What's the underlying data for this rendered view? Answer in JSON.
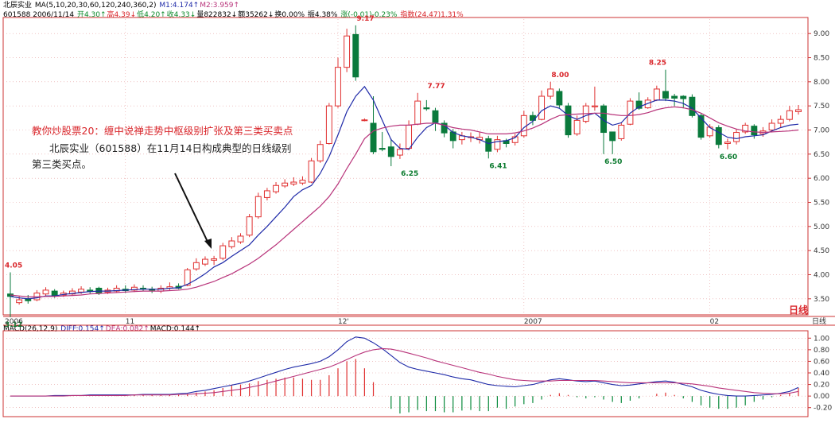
{
  "header": {
    "line1": [
      {
        "text": "北辰实业",
        "color": "#000000"
      },
      {
        "text": " MA(5,10,20,30,60,120,240,360,2)",
        "color": "#000000"
      },
      {
        "text": " M1:4.174↑",
        "color": "#1f2aa8"
      },
      {
        "text": "M2:3.959↑",
        "color": "#b8337a"
      }
    ],
    "line2": [
      {
        "text": "601588 2006/11/14 ",
        "color": "#000000"
      },
      {
        "text": "开4.30↑",
        "color": "#0b8a2a"
      },
      {
        "text": "高4.39↓",
        "color": "#d9262b"
      },
      {
        "text": "低4.20↑",
        "color": "#0b8a2a"
      },
      {
        "text": "收4.33↓",
        "color": "#0b8a2a"
      },
      {
        "text": "量822832↓",
        "color": "#000000"
      },
      {
        "text": "额35262↓",
        "color": "#000000"
      },
      {
        "text": "换0.00% ",
        "color": "#000000"
      },
      {
        "text": "振4.38% ",
        "color": "#000000"
      },
      {
        "text": "涨(-0.01)-0.23% ",
        "color": "#0b8a2a"
      },
      {
        "text": "指数(24.47)1.31%",
        "color": "#d9262b"
      }
    ],
    "macd": [
      {
        "text": "MACD(26,12,9) ",
        "color": "#000000"
      },
      {
        "text": "DIFF:0.154↑",
        "color": "#1f2aa8"
      },
      {
        "text": "DEA:0.082↑",
        "color": "#b8337a"
      },
      {
        "text": "MACD:0.144↑",
        "color": "#000000"
      }
    ]
  },
  "annotation": {
    "title": "教你炒股票20：缠中说禅走势中枢级别扩张及第三类买卖点",
    "line1": "北辰实业（601588）在11月14日构成典型的日线级别",
    "line2": "第三类买点。"
  },
  "period_label": "日线",
  "macd_period_label": "日线",
  "chart_data": {
    "type": "candlestick",
    "price_axis": {
      "min": 3.12,
      "max": 9.17,
      "ticks": [
        "9.00",
        "8.50",
        "8.00",
        "7.50",
        "7.00",
        "6.50",
        "6.00",
        "5.50",
        "5.00",
        "4.50",
        "4.00",
        "3.50"
      ]
    },
    "time_labels": [
      {
        "label": "2006",
        "index": 0
      },
      {
        "label": "11",
        "index": 13
      },
      {
        "label": "12'",
        "index": 37
      },
      {
        "label": "2007",
        "index": 58
      },
      {
        "label": "02",
        "index": 79
      }
    ],
    "peak_labels": [
      {
        "index": 0,
        "price": 4.05,
        "text": "4.05",
        "kind": "high"
      },
      {
        "index": 0,
        "price": 3.12,
        "text": "3.12",
        "kind": "low"
      },
      {
        "index": 40,
        "price": 9.17,
        "text": "9.17",
        "kind": "high"
      },
      {
        "index": 45,
        "price": 6.25,
        "text": "6.25",
        "kind": "low"
      },
      {
        "index": 48,
        "price": 7.77,
        "text": "7.77",
        "kind": "high"
      },
      {
        "index": 55,
        "price": 6.41,
        "text": "6.41",
        "kind": "low"
      },
      {
        "index": 62,
        "price": 8.0,
        "text": "8.00",
        "kind": "high"
      },
      {
        "index": 68,
        "price": 6.5,
        "text": "6.50",
        "kind": "low"
      },
      {
        "index": 73,
        "price": 8.25,
        "text": "8.25",
        "kind": "high"
      },
      {
        "index": 81,
        "price": 6.6,
        "text": "6.60",
        "kind": "low"
      }
    ],
    "candles": [
      [
        3.6,
        3.55,
        4.05,
        3.12
      ],
      [
        3.42,
        3.48,
        3.56,
        3.38
      ],
      [
        3.5,
        3.46,
        3.58,
        3.4
      ],
      [
        3.48,
        3.62,
        3.68,
        3.45
      ],
      [
        3.6,
        3.68,
        3.74,
        3.55
      ],
      [
        3.66,
        3.57,
        3.7,
        3.52
      ],
      [
        3.58,
        3.62,
        3.67,
        3.54
      ],
      [
        3.6,
        3.66,
        3.72,
        3.56
      ],
      [
        3.64,
        3.7,
        3.76,
        3.6
      ],
      [
        3.68,
        3.65,
        3.74,
        3.6
      ],
      [
        3.72,
        3.62,
        3.75,
        3.58
      ],
      [
        3.64,
        3.68,
        3.73,
        3.6
      ],
      [
        3.66,
        3.72,
        3.78,
        3.62
      ],
      [
        3.7,
        3.67,
        3.78,
        3.62
      ],
      [
        3.68,
        3.74,
        3.8,
        3.64
      ],
      [
        3.72,
        3.7,
        3.78,
        3.66
      ],
      [
        3.7,
        3.68,
        3.75,
        3.62
      ],
      [
        3.66,
        3.72,
        3.78,
        3.62
      ],
      [
        3.72,
        3.75,
        3.84,
        3.68
      ],
      [
        3.76,
        3.72,
        3.82,
        3.7
      ],
      [
        3.78,
        4.1,
        4.14,
        3.76
      ],
      [
        4.12,
        4.25,
        4.34,
        4.08
      ],
      [
        4.22,
        4.32,
        4.38,
        4.18
      ],
      [
        4.3,
        4.33,
        4.39,
        4.2
      ],
      [
        4.34,
        4.6,
        4.66,
        4.3
      ],
      [
        4.58,
        4.7,
        4.78,
        4.54
      ],
      [
        4.68,
        4.8,
        4.86,
        4.64
      ],
      [
        4.82,
        5.2,
        5.26,
        4.78
      ],
      [
        5.2,
        5.62,
        5.7,
        5.16
      ],
      [
        5.6,
        5.74,
        5.8,
        5.54
      ],
      [
        5.72,
        5.85,
        5.92,
        5.68
      ],
      [
        5.84,
        5.9,
        5.98,
        5.8
      ],
      [
        5.88,
        5.92,
        6.02,
        5.84
      ],
      [
        5.9,
        5.96,
        6.04,
        5.86
      ],
      [
        5.92,
        6.36,
        6.42,
        5.9
      ],
      [
        6.36,
        6.7,
        6.78,
        6.32
      ],
      [
        6.72,
        7.5,
        7.56,
        6.7
      ],
      [
        7.5,
        8.3,
        8.5,
        7.46
      ],
      [
        8.3,
        8.95,
        9.1,
        8.2
      ],
      [
        8.98,
        8.1,
        9.17,
        8.02
      ],
      [
        7.2,
        7.21,
        7.24,
        7.18
      ],
      [
        7.14,
        6.55,
        7.7,
        6.5
      ],
      [
        6.62,
        6.6,
        6.96,
        6.56
      ],
      [
        6.65,
        6.45,
        6.82,
        6.25
      ],
      [
        6.48,
        6.6,
        6.72,
        6.4
      ],
      [
        6.62,
        7.1,
        7.2,
        6.58
      ],
      [
        7.12,
        7.6,
        7.77,
        7.1
      ],
      [
        7.46,
        7.44,
        7.62,
        7.4
      ],
      [
        7.4,
        7.16,
        7.46,
        6.98
      ],
      [
        7.14,
        6.94,
        7.2,
        6.85
      ],
      [
        6.96,
        6.78,
        7.02,
        6.62
      ],
      [
        6.8,
        6.88,
        6.96,
        6.7
      ],
      [
        6.85,
        6.86,
        6.95,
        6.75
      ],
      [
        6.8,
        6.85,
        6.95,
        6.72
      ],
      [
        6.82,
        6.56,
        6.88,
        6.41
      ],
      [
        6.6,
        6.8,
        6.88,
        6.54
      ],
      [
        6.78,
        6.72,
        6.82,
        6.64
      ],
      [
        6.74,
        6.86,
        6.92,
        6.68
      ],
      [
        6.88,
        7.3,
        7.4,
        6.84
      ],
      [
        7.3,
        7.2,
        7.38,
        7.1
      ],
      [
        7.22,
        7.7,
        7.82,
        7.2
      ],
      [
        7.7,
        7.85,
        8.0,
        7.64
      ],
      [
        7.8,
        7.52,
        7.86,
        7.46
      ],
      [
        7.5,
        6.9,
        7.56,
        6.84
      ],
      [
        6.92,
        7.2,
        7.3,
        6.88
      ],
      [
        7.18,
        7.5,
        7.56,
        7.14
      ],
      [
        7.48,
        7.5,
        7.9,
        7.4
      ],
      [
        7.5,
        6.95,
        7.54,
        6.5
      ],
      [
        6.96,
        6.78,
        6.94,
        6.5
      ],
      [
        6.82,
        7.1,
        7.16,
        6.78
      ],
      [
        7.12,
        7.6,
        7.66,
        7.1
      ],
      [
        7.6,
        7.45,
        7.78,
        7.42
      ],
      [
        7.46,
        7.62,
        7.68,
        7.44
      ],
      [
        7.62,
        7.85,
        7.92,
        7.6
      ],
      [
        7.8,
        7.66,
        8.25,
        7.6
      ],
      [
        7.7,
        7.66,
        7.75,
        7.5
      ],
      [
        7.7,
        7.65,
        7.72,
        7.45
      ],
      [
        7.68,
        7.3,
        7.74,
        7.26
      ],
      [
        7.3,
        6.85,
        7.34,
        6.8
      ],
      [
        6.88,
        7.06,
        7.12,
        6.84
      ],
      [
        7.05,
        6.7,
        7.1,
        6.62
      ],
      [
        6.72,
        6.75,
        6.82,
        6.6
      ],
      [
        6.76,
        6.95,
        7.02,
        6.7
      ],
      [
        6.96,
        7.1,
        7.15,
        6.92
      ],
      [
        7.08,
        6.9,
        7.12,
        6.82
      ],
      [
        6.92,
        6.98,
        7.06,
        6.86
      ],
      [
        7.0,
        7.14,
        7.22,
        6.95
      ],
      [
        7.14,
        7.22,
        7.3,
        7.05
      ],
      [
        7.22,
        7.4,
        7.5,
        7.18
      ],
      [
        7.38,
        7.42,
        7.52,
        7.32
      ]
    ],
    "ma_series": [
      {
        "name": "M1",
        "color": "#1f2aa8",
        "values": [
          3.55,
          3.52,
          3.5,
          3.52,
          3.56,
          3.56,
          3.59,
          3.61,
          3.63,
          3.65,
          3.66,
          3.66,
          3.67,
          3.68,
          3.69,
          3.7,
          3.7,
          3.7,
          3.72,
          3.73,
          3.8,
          3.9,
          4.02,
          4.16,
          4.25,
          4.38,
          4.5,
          4.62,
          4.82,
          5.0,
          5.2,
          5.4,
          5.62,
          5.76,
          5.85,
          6.1,
          6.45,
          6.9,
          7.38,
          7.7,
          7.9,
          7.62,
          7.2,
          6.8,
          6.62,
          6.6,
          6.85,
          7.05,
          7.15,
          7.1,
          6.95,
          6.88,
          6.85,
          6.8,
          6.72,
          6.76,
          6.78,
          6.84,
          7.05,
          7.18,
          7.4,
          7.5,
          7.45,
          7.3,
          7.22,
          7.3,
          7.35,
          7.2,
          7.1,
          7.15,
          7.35,
          7.48,
          7.55,
          7.62,
          7.62,
          7.6,
          7.55,
          7.45,
          7.25,
          7.05,
          6.95,
          6.85,
          6.82,
          6.86,
          6.88,
          6.9,
          6.98,
          7.05,
          7.1,
          7.12
        ]
      },
      {
        "name": "M2",
        "color": "#b8337a",
        "values": [
          3.58,
          3.56,
          3.54,
          3.54,
          3.55,
          3.55,
          3.56,
          3.57,
          3.58,
          3.6,
          3.61,
          3.62,
          3.63,
          3.64,
          3.65,
          3.66,
          3.66,
          3.66,
          3.67,
          3.68,
          3.7,
          3.74,
          3.8,
          3.86,
          3.94,
          4.02,
          4.12,
          4.22,
          4.34,
          4.48,
          4.62,
          4.78,
          4.94,
          5.1,
          5.26,
          5.42,
          5.62,
          5.88,
          6.2,
          6.5,
          6.82,
          6.98,
          7.04,
          7.08,
          7.1,
          7.1,
          7.12,
          7.14,
          7.14,
          7.1,
          7.05,
          7.02,
          7.0,
          6.96,
          6.92,
          6.92,
          6.92,
          6.94,
          6.98,
          7.04,
          7.12,
          7.22,
          7.3,
          7.32,
          7.33,
          7.34,
          7.35,
          7.35,
          7.32,
          7.3,
          7.3,
          7.32,
          7.36,
          7.42,
          7.46,
          7.48,
          7.46,
          7.42,
          7.35,
          7.25,
          7.15,
          7.08,
          7.02,
          6.98,
          6.96,
          6.95,
          6.96,
          6.97,
          6.98,
          7.0
        ]
      }
    ],
    "macd": {
      "axis": {
        "min": -0.3,
        "max": 1.1,
        "ticks": [
          "1.00",
          "0.80",
          "0.60",
          "0.40",
          "0.20",
          "0.00",
          "-0.20"
        ]
      },
      "diff": [
        0,
        0,
        0,
        0,
        0,
        0.01,
        0.01,
        0.01,
        0.01,
        0.02,
        0.02,
        0.02,
        0.02,
        0.02,
        0.02,
        0.03,
        0.03,
        0.03,
        0.03,
        0.04,
        0.05,
        0.08,
        0.1,
        0.13,
        0.16,
        0.19,
        0.22,
        0.26,
        0.31,
        0.36,
        0.41,
        0.46,
        0.5,
        0.53,
        0.56,
        0.6,
        0.68,
        0.8,
        0.94,
        1.02,
        1.0,
        0.92,
        0.82,
        0.7,
        0.58,
        0.5,
        0.46,
        0.43,
        0.4,
        0.37,
        0.33,
        0.3,
        0.28,
        0.24,
        0.2,
        0.18,
        0.17,
        0.16,
        0.18,
        0.2,
        0.24,
        0.28,
        0.3,
        0.28,
        0.26,
        0.25,
        0.26,
        0.23,
        0.2,
        0.18,
        0.19,
        0.21,
        0.23,
        0.25,
        0.26,
        0.24,
        0.2,
        0.16,
        0.1,
        0.06,
        0.03,
        0.01,
        0.0,
        0.0,
        0.01,
        0.02,
        0.03,
        0.05,
        0.08,
        0.15
      ],
      "dea": [
        0,
        0,
        0,
        0,
        0,
        0,
        0,
        0.01,
        0.01,
        0.01,
        0.01,
        0.01,
        0.01,
        0.01,
        0.02,
        0.02,
        0.02,
        0.02,
        0.02,
        0.03,
        0.03,
        0.04,
        0.05,
        0.06,
        0.08,
        0.1,
        0.12,
        0.15,
        0.18,
        0.22,
        0.26,
        0.3,
        0.34,
        0.38,
        0.42,
        0.46,
        0.5,
        0.56,
        0.63,
        0.7,
        0.76,
        0.8,
        0.82,
        0.81,
        0.78,
        0.74,
        0.7,
        0.66,
        0.61,
        0.57,
        0.53,
        0.49,
        0.45,
        0.41,
        0.38,
        0.34,
        0.31,
        0.28,
        0.27,
        0.26,
        0.26,
        0.26,
        0.27,
        0.27,
        0.27,
        0.27,
        0.27,
        0.26,
        0.25,
        0.24,
        0.23,
        0.23,
        0.23,
        0.23,
        0.23,
        0.23,
        0.22,
        0.21,
        0.19,
        0.17,
        0.14,
        0.12,
        0.1,
        0.08,
        0.06,
        0.05,
        0.04,
        0.04,
        0.05,
        0.08
      ],
      "hist": [
        0,
        0,
        0,
        0,
        0,
        0.01,
        0.01,
        0.01,
        0.01,
        0.02,
        0.02,
        0.02,
        0.02,
        0.02,
        0.02,
        0.02,
        0.02,
        0.02,
        0.02,
        0.02,
        0.04,
        0.06,
        0.08,
        0.1,
        0.14,
        0.18,
        0.2,
        0.22,
        0.26,
        0.28,
        0.3,
        0.32,
        0.32,
        0.3,
        0.28,
        0.28,
        0.36,
        0.48,
        0.6,
        0.64,
        0.48,
        0.24,
        0,
        -0.22,
        -0.3,
        -0.28,
        -0.24,
        -0.26,
        -0.26,
        -0.28,
        -0.28,
        -0.25,
        -0.24,
        -0.26,
        -0.26,
        -0.2,
        -0.22,
        -0.18,
        -0.14,
        -0.12,
        -0.06,
        0.02,
        0.05,
        0.02,
        -0.02,
        -0.04,
        -0.02,
        -0.06,
        -0.1,
        -0.12,
        -0.08,
        -0.04,
        0.0,
        0.04,
        0.06,
        0.02,
        -0.04,
        -0.1,
        -0.16,
        -0.2,
        -0.22,
        -0.22,
        -0.2,
        -0.16,
        -0.1,
        -0.06,
        -0.02,
        0.02,
        0.05,
        0.14
      ]
    }
  }
}
